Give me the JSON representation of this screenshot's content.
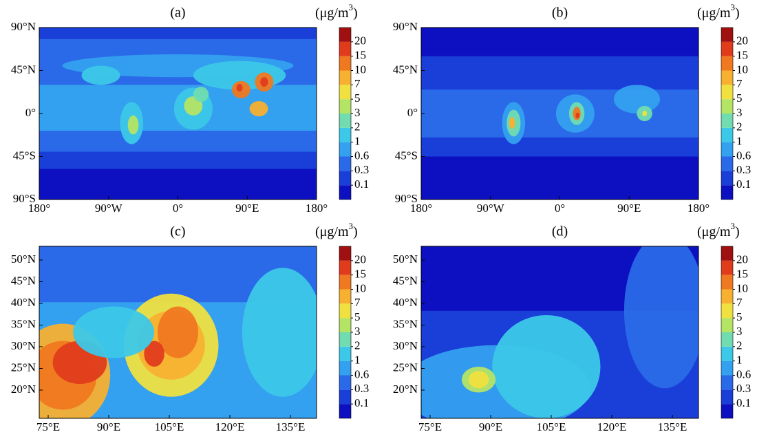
{
  "colorbar": {
    "unit_base": "(μg/m",
    "unit_sup": "3",
    "unit_close": ")",
    "levels": [
      0.1,
      0.3,
      0.6,
      1,
      2,
      3,
      5,
      7,
      10,
      15,
      20
    ],
    "colors": [
      "#0c10c0",
      "#1a3ed8",
      "#2a6ae8",
      "#34a0f0",
      "#3cc8e8",
      "#70dcb0",
      "#b4e464",
      "#f0e040",
      "#f8b030",
      "#f07820",
      "#e03c1c",
      "#a01010"
    ]
  },
  "panels": [
    {
      "label": "(a)",
      "yticks": [
        "90°N",
        "45°N",
        "0°",
        "45°S",
        "90°S"
      ],
      "xticks": [
        "180°",
        "90°W",
        "0°",
        "90°E",
        "180°"
      ]
    },
    {
      "label": "(b)",
      "yticks": [
        "90°N",
        "45°N",
        "0°",
        "45°S",
        "90°S"
      ],
      "xticks": [
        "180°",
        "90°W",
        "0°",
        "90°E",
        "180°"
      ]
    },
    {
      "label": "(c)",
      "yticks": [
        "50°N",
        "45°N",
        "40°N",
        "35°N",
        "30°N",
        "25°N",
        "20°N"
      ],
      "xticks": [
        "75°E",
        "90°E",
        "105°E",
        "120°E",
        "135°E"
      ]
    },
    {
      "label": "(d)",
      "yticks": [
        "50°N",
        "45°N",
        "40°N",
        "35°N",
        "30°N",
        "25°N",
        "20°N"
      ],
      "xticks": [
        "75°E",
        "90°E",
        "105°E",
        "120°E",
        "135°E"
      ]
    }
  ]
}
